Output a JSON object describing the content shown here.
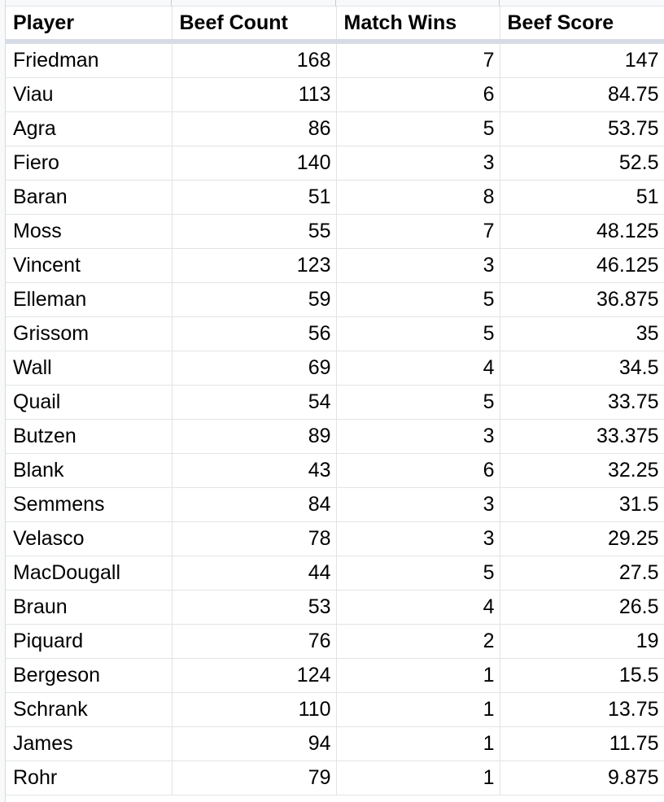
{
  "headers": {
    "player": "Player",
    "beef_count": "Beef Count",
    "match_wins": "Match Wins",
    "beef_score": "Beef Score"
  },
  "rows": [
    {
      "player": "Friedman",
      "beef_count": "168",
      "match_wins": "7",
      "beef_score": "147"
    },
    {
      "player": "Viau",
      "beef_count": "113",
      "match_wins": "6",
      "beef_score": "84.75"
    },
    {
      "player": "Agra",
      "beef_count": "86",
      "match_wins": "5",
      "beef_score": "53.75"
    },
    {
      "player": "Fiero",
      "beef_count": "140",
      "match_wins": "3",
      "beef_score": "52.5"
    },
    {
      "player": "Baran",
      "beef_count": "51",
      "match_wins": "8",
      "beef_score": "51"
    },
    {
      "player": "Moss",
      "beef_count": "55",
      "match_wins": "7",
      "beef_score": "48.125"
    },
    {
      "player": "Vincent",
      "beef_count": "123",
      "match_wins": "3",
      "beef_score": "46.125"
    },
    {
      "player": "Elleman",
      "beef_count": "59",
      "match_wins": "5",
      "beef_score": "36.875"
    },
    {
      "player": "Grissom",
      "beef_count": "56",
      "match_wins": "5",
      "beef_score": "35"
    },
    {
      "player": "Wall",
      "beef_count": "69",
      "match_wins": "4",
      "beef_score": "34.5"
    },
    {
      "player": "Quail",
      "beef_count": "54",
      "match_wins": "5",
      "beef_score": "33.75"
    },
    {
      "player": "Butzen",
      "beef_count": "89",
      "match_wins": "3",
      "beef_score": "33.375"
    },
    {
      "player": "Blank",
      "beef_count": "43",
      "match_wins": "6",
      "beef_score": "32.25"
    },
    {
      "player": "Semmens",
      "beef_count": "84",
      "match_wins": "3",
      "beef_score": "31.5"
    },
    {
      "player": "Velasco",
      "beef_count": "78",
      "match_wins": "3",
      "beef_score": "29.25"
    },
    {
      "player": "MacDougall",
      "beef_count": "44",
      "match_wins": "5",
      "beef_score": "27.5"
    },
    {
      "player": "Braun",
      "beef_count": "53",
      "match_wins": "4",
      "beef_score": "26.5"
    },
    {
      "player": "Piquard",
      "beef_count": "76",
      "match_wins": "2",
      "beef_score": "19"
    },
    {
      "player": "Bergeson",
      "beef_count": "124",
      "match_wins": "1",
      "beef_score": "15.5"
    },
    {
      "player": "Schrank",
      "beef_count": "110",
      "match_wins": "1",
      "beef_score": "13.75"
    },
    {
      "player": "James",
      "beef_count": "94",
      "match_wins": "1",
      "beef_score": "11.75"
    },
    {
      "player": "Rohr",
      "beef_count": "79",
      "match_wins": "1",
      "beef_score": "9.875"
    }
  ]
}
